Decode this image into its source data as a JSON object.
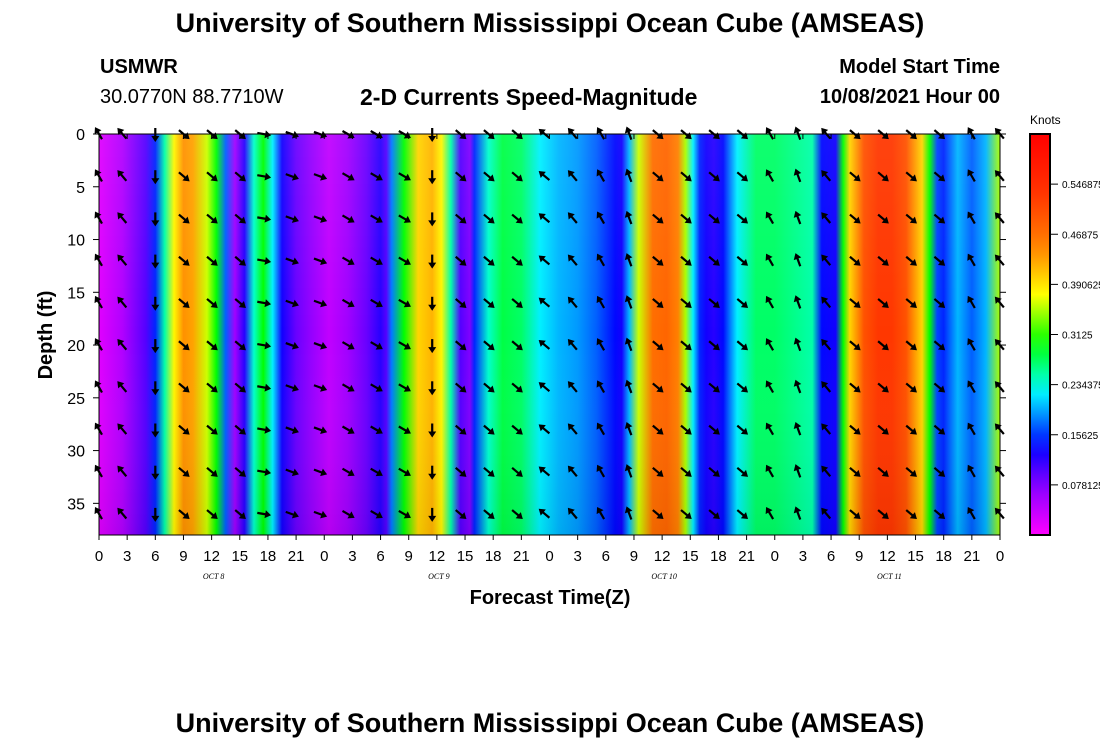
{
  "header": {
    "title": "University of Southern Mississippi Ocean Cube (AMSEAS)",
    "station": "USMWR",
    "coordinates": "30.0770N  88.7710W",
    "plot_title": "2-D Currents Speed-Magnitude",
    "start_label": "Model Start Time",
    "start_value": "10/08/2021 Hour 00"
  },
  "footer": {
    "title": "University of Southern Mississippi Ocean Cube (AMSEAS)"
  },
  "chart_data": {
    "type": "heatmap",
    "title": "2-D Currents Speed-Magnitude",
    "xlabel": "Forecast Time(Z)",
    "ylabel": "Depth (ft)",
    "x_hours_range": [
      0,
      96
    ],
    "y_depth_range": [
      0,
      38
    ],
    "y_ticks": [
      "0",
      "5",
      "10",
      "15",
      "20",
      "25",
      "30",
      "35"
    ],
    "x_tick_labels": [
      "0",
      "3",
      "6",
      "9",
      "12",
      "15",
      "18",
      "21",
      "0",
      "3",
      "6",
      "9",
      "12",
      "15",
      "18",
      "21",
      "0",
      "3",
      "6",
      "9",
      "12",
      "15",
      "18",
      "21",
      "0",
      "3",
      "6",
      "9",
      "12",
      "15",
      "18",
      "21",
      "0"
    ],
    "day_labels": [
      "OCT 8",
      "OCT 9",
      "OCT 10",
      "OCT 11"
    ],
    "colorbar": {
      "unit": "Knots",
      "range": [
        0,
        0.625
      ],
      "tick_labels": [
        "0.078125",
        "0.15625",
        "0.234375",
        "0.3125",
        "0.390625",
        "0.46875",
        "0.546875"
      ]
    },
    "speed_profile_hours": [
      0,
      2.5,
      5,
      6,
      7,
      8,
      9,
      10,
      11.5,
      12.5,
      13.5,
      14.5,
      15.5,
      16.5,
      17.5,
      18.5,
      19.5,
      21,
      22.5,
      24.5,
      26.5,
      28.5,
      30,
      30.6,
      31.2,
      32.5,
      34,
      35.5,
      36.5,
      37.5,
      38.5,
      39.5,
      40,
      41.5,
      43,
      45,
      47,
      49,
      51,
      53,
      55,
      55.7,
      56.5,
      57.5,
      59,
      60.5,
      61.7,
      62.5,
      63.3,
      64,
      64.7,
      65.5,
      66.5,
      68,
      70,
      72,
      74,
      76,
      77,
      78.5,
      79.3,
      80,
      81.5,
      83,
      84.5,
      86,
      87.7,
      88.5,
      89.3,
      90,
      91.5,
      93,
      94.5,
      96
    ],
    "speed_profile_knots": [
      0.02,
      0.05,
      0.1,
      0.15,
      0.25,
      0.38,
      0.44,
      0.43,
      0.36,
      0.3,
      0.17,
      0.06,
      0.12,
      0.24,
      0.3,
      0.22,
      0.13,
      0.09,
      0.07,
      0.04,
      0.06,
      0.09,
      0.12,
      0.1,
      0.18,
      0.3,
      0.4,
      0.42,
      0.38,
      0.25,
      0.1,
      0.08,
      0.15,
      0.24,
      0.28,
      0.27,
      0.22,
      0.2,
      0.19,
      0.17,
      0.14,
      0.13,
      0.2,
      0.36,
      0.47,
      0.48,
      0.45,
      0.35,
      0.22,
      0.15,
      0.13,
      0.12,
      0.14,
      0.22,
      0.27,
      0.27,
      0.26,
      0.25,
      0.14,
      0.13,
      0.3,
      0.4,
      0.5,
      0.53,
      0.53,
      0.5,
      0.4,
      0.3,
      0.16,
      0.15,
      0.2,
      0.17,
      0.2,
      0.35
    ],
    "arrow_hours": [
      0,
      2.5,
      6,
      9,
      12,
      15,
      17.5,
      20.5,
      23.5,
      26.5,
      29.5,
      32.5,
      35.5,
      38.5,
      41.5,
      44.5,
      47.5,
      50.5,
      53.5,
      56.5,
      59.5,
      62.5,
      65.5,
      68.5,
      71.5,
      74.5,
      77.5,
      80.5,
      83.5,
      86.5,
      89.5,
      93,
      96
    ],
    "arrow_depths_ft": [
      0,
      4,
      8,
      12,
      16,
      20,
      24,
      28,
      32,
      36
    ],
    "arrow_direction_deg": [
      -120,
      -130,
      90,
      40,
      40,
      40,
      10,
      20,
      20,
      30,
      30,
      30,
      90,
      40,
      40,
      40,
      -140,
      -130,
      -120,
      -110,
      40,
      40,
      40,
      40,
      -120,
      -110,
      -130,
      40,
      40,
      40,
      40,
      -120,
      -130
    ]
  }
}
